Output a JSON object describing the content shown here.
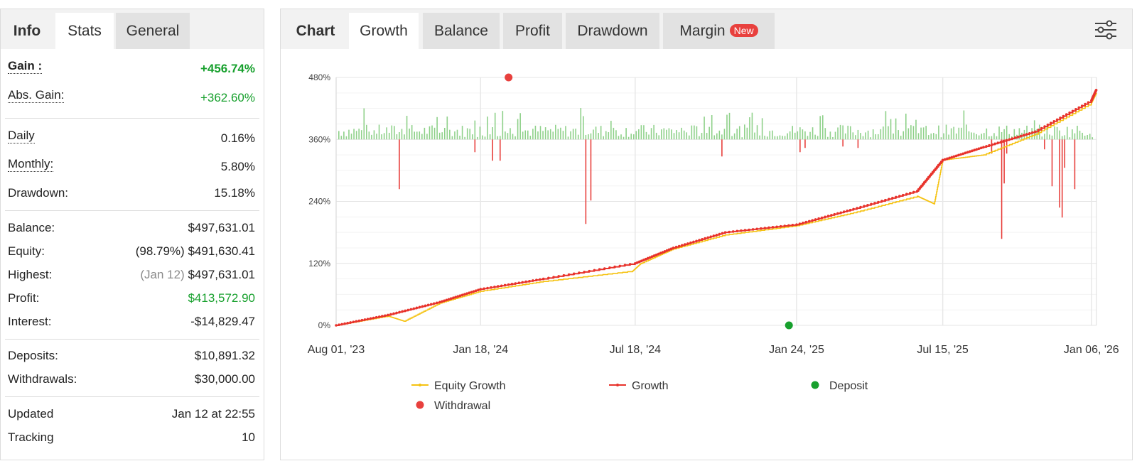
{
  "left_tabs": [
    "Info",
    "Stats",
    "General"
  ],
  "stats": {
    "gain": {
      "label": "Gain :",
      "value": "+456.74%"
    },
    "abs_gain": {
      "label": "Abs. Gain:",
      "value": "+362.60%"
    },
    "daily": {
      "label": "Daily",
      "value": "0.16%"
    },
    "monthly": {
      "label": "Monthly:",
      "value": "5.80%"
    },
    "drawdown": {
      "label": "Drawdown:",
      "value": "15.18%"
    },
    "balance": {
      "label": "Balance:",
      "value": "$497,631.01"
    },
    "equity": {
      "label": "Equity:",
      "note": "(98.79%)",
      "value": "$491,630.41"
    },
    "highest": {
      "label": "Highest:",
      "note": "(Jan 12)",
      "value": "$497,631.01"
    },
    "profit": {
      "label": "Profit:",
      "value": "$413,572.90"
    },
    "interest": {
      "label": "Interest:",
      "value": "-$14,829.47"
    },
    "deposits": {
      "label": "Deposits:",
      "value": "$10,891.32"
    },
    "withdrawals": {
      "label": "Withdrawals:",
      "value": "$30,000.00"
    },
    "updated": {
      "label": "Updated",
      "value": "Jan 12 at 22:55"
    },
    "tracking": {
      "label": "Tracking",
      "value": "10"
    }
  },
  "chart_tabs": {
    "chart": "Chart",
    "growth": "Growth",
    "balance": "Balance",
    "profit": "Profit",
    "drawdown": "Drawdown",
    "margin": "Margin",
    "margin_badge": "New"
  },
  "icons": {
    "settings": "sliders-icon"
  },
  "colors": {
    "growth": "#e8332c",
    "equity": "#f5c211",
    "deposit": "#17a02d",
    "withdrawal": "#e8403d",
    "gain_bar": "#8fd18a",
    "loss_bar": "#e8403d",
    "positive_text": "#17a02d"
  },
  "legend": {
    "equity_growth": "Equity Growth",
    "growth": "Growth",
    "deposit": "Deposit",
    "withdrawal": "Withdrawal"
  },
  "chart_data": {
    "type": "line",
    "y_tick_labels": [
      "0%",
      "120%",
      "240%",
      "360%",
      "480%"
    ],
    "x_tick_labels": [
      "Aug 01, '23",
      "Jan 18, '24",
      "Jul 18, '24",
      "Jan 24, '25",
      "Jul 15, '25",
      "Jan 06, '26"
    ],
    "ylim": [
      0,
      480
    ],
    "xlim": [
      "2023-08-01",
      "2026-01-12"
    ],
    "grid": true,
    "legend_position": "bottom",
    "series": [
      {
        "name": "Growth",
        "x": [
          "2023-08-01",
          "2023-10-01",
          "2023-12-01",
          "2024-01-18",
          "2024-04-01",
          "2024-07-18",
          "2024-09-01",
          "2024-11-01",
          "2025-01-24",
          "2025-04-01",
          "2025-06-15",
          "2025-07-15",
          "2025-09-01",
          "2025-11-01",
          "2026-01-06",
          "2026-01-12"
        ],
        "values": [
          0,
          20,
          45,
          70,
          90,
          120,
          150,
          180,
          195,
          225,
          260,
          320,
          345,
          375,
          435,
          456.74
        ]
      },
      {
        "name": "Equity Growth",
        "x": [
          "2023-08-01",
          "2023-10-01",
          "2023-10-20",
          "2023-12-01",
          "2024-01-18",
          "2024-04-01",
          "2024-07-15",
          "2024-07-25",
          "2024-09-01",
          "2024-11-01",
          "2025-01-24",
          "2025-04-01",
          "2025-06-15",
          "2025-07-05",
          "2025-07-15",
          "2025-09-01",
          "2025-11-01",
          "2026-01-06",
          "2026-01-12"
        ],
        "values": [
          0,
          18,
          8,
          43,
          66,
          85,
          105,
          120,
          148,
          175,
          193,
          218,
          250,
          235,
          320,
          330,
          370,
          430,
          450
        ]
      },
      {
        "name": "Deposit",
        "x": [
          "2025-01-15"
        ],
        "values": [
          0
        ]
      },
      {
        "name": "Withdrawal",
        "x": [
          "2024-02-20"
        ],
        "values": [
          480
        ]
      }
    ],
    "daily_change_baseline": "360%",
    "gain_bar_note": "green bars above 360% baseline show daily gains, red bars below show daily losses"
  }
}
